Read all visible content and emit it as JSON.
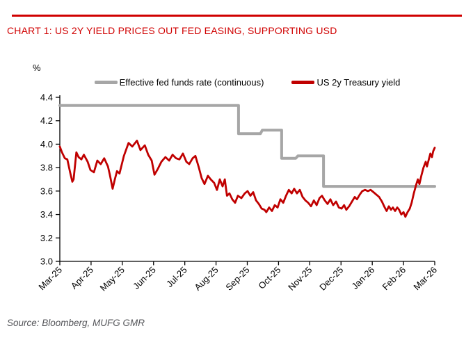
{
  "header": {
    "title": "CHART 1: US 2Y YIELD PRICES OUT FED EASING, SUPPORTING USD",
    "accent_color": "#D00000"
  },
  "footer": {
    "source": "Source: Bloomberg, MUFG GMR"
  },
  "chart_data": {
    "type": "line",
    "title": "CHART 1: US 2Y YIELD PRICES OUT FED EASING, SUPPORTING USD",
    "unit_label": "%",
    "ylabel": "%",
    "xlabel": "",
    "ylim": [
      3.0,
      4.4
    ],
    "yticks": [
      4.4,
      4.2,
      4.0,
      3.8,
      3.6,
      3.4,
      3.2,
      3.0
    ],
    "x_categories": [
      "Mar-25",
      "Apr-25",
      "May-25",
      "Jun-25",
      "Jul-25",
      "Aug-25",
      "Sep-25",
      "Oct-25",
      "Nov-25",
      "Dec-25",
      "Jan-26",
      "Feb-26",
      "Mar-26"
    ],
    "grid": false,
    "legend_position": "top-center",
    "x_unit": "month index, 0 = Mar-25 tick, 12 = Mar-26 tick",
    "series": [
      {
        "name": "Effective fed funds rate (continuous)",
        "color": "#A6A6A6",
        "width": 4,
        "style": "step",
        "points": [
          [
            0,
            4.33
          ],
          [
            5.72,
            4.33
          ],
          [
            5.72,
            4.09
          ],
          [
            6.42,
            4.09
          ],
          [
            6.48,
            4.12
          ],
          [
            7.1,
            4.12
          ],
          [
            7.1,
            3.88
          ],
          [
            7.55,
            3.88
          ],
          [
            7.62,
            3.9
          ],
          [
            8.44,
            3.9
          ],
          [
            8.44,
            3.64
          ],
          [
            12,
            3.64
          ]
        ]
      },
      {
        "name": "US 2y Treasury yield",
        "color": "#C00000",
        "width": 2.8,
        "style": "line",
        "points": [
          [
            0,
            3.98
          ],
          [
            0.07,
            3.93
          ],
          [
            0.16,
            3.88
          ],
          [
            0.24,
            3.87
          ],
          [
            0.33,
            3.76
          ],
          [
            0.4,
            3.68
          ],
          [
            0.44,
            3.7
          ],
          [
            0.53,
            3.93
          ],
          [
            0.6,
            3.89
          ],
          [
            0.69,
            3.87
          ],
          [
            0.77,
            3.91
          ],
          [
            0.89,
            3.85
          ],
          [
            0.98,
            3.78
          ],
          [
            1.09,
            3.76
          ],
          [
            1.2,
            3.86
          ],
          [
            1.31,
            3.83
          ],
          [
            1.42,
            3.88
          ],
          [
            1.54,
            3.81
          ],
          [
            1.6,
            3.74
          ],
          [
            1.69,
            3.62
          ],
          [
            1.76,
            3.7
          ],
          [
            1.83,
            3.77
          ],
          [
            1.91,
            3.75
          ],
          [
            2.05,
            3.9
          ],
          [
            2.2,
            4.01
          ],
          [
            2.32,
            3.98
          ],
          [
            2.47,
            4.03
          ],
          [
            2.58,
            3.95
          ],
          [
            2.72,
            3.99
          ],
          [
            2.83,
            3.91
          ],
          [
            2.94,
            3.86
          ],
          [
            3.03,
            3.74
          ],
          [
            3.14,
            3.79
          ],
          [
            3.25,
            3.85
          ],
          [
            3.38,
            3.89
          ],
          [
            3.5,
            3.86
          ],
          [
            3.61,
            3.91
          ],
          [
            3.72,
            3.88
          ],
          [
            3.83,
            3.87
          ],
          [
            3.94,
            3.92
          ],
          [
            4.05,
            3.85
          ],
          [
            4.14,
            3.83
          ],
          [
            4.25,
            3.88
          ],
          [
            4.34,
            3.9
          ],
          [
            4.45,
            3.8
          ],
          [
            4.54,
            3.71
          ],
          [
            4.63,
            3.66
          ],
          [
            4.74,
            3.73
          ],
          [
            4.83,
            3.7
          ],
          [
            4.94,
            3.67
          ],
          [
            5.03,
            3.61
          ],
          [
            5.12,
            3.7
          ],
          [
            5.21,
            3.64
          ],
          [
            5.28,
            3.7
          ],
          [
            5.35,
            3.56
          ],
          [
            5.43,
            3.58
          ],
          [
            5.52,
            3.53
          ],
          [
            5.61,
            3.5
          ],
          [
            5.7,
            3.56
          ],
          [
            5.81,
            3.54
          ],
          [
            5.92,
            3.58
          ],
          [
            6.01,
            3.6
          ],
          [
            6.1,
            3.56
          ],
          [
            6.19,
            3.59
          ],
          [
            6.28,
            3.52
          ],
          [
            6.37,
            3.49
          ],
          [
            6.46,
            3.45
          ],
          [
            6.55,
            3.44
          ],
          [
            6.61,
            3.42
          ],
          [
            6.7,
            3.46
          ],
          [
            6.79,
            3.43
          ],
          [
            6.88,
            3.48
          ],
          [
            6.97,
            3.46
          ],
          [
            7.06,
            3.53
          ],
          [
            7.15,
            3.5
          ],
          [
            7.24,
            3.56
          ],
          [
            7.33,
            3.61
          ],
          [
            7.42,
            3.58
          ],
          [
            7.5,
            3.62
          ],
          [
            7.59,
            3.58
          ],
          [
            7.68,
            3.61
          ],
          [
            7.77,
            3.55
          ],
          [
            7.86,
            3.52
          ],
          [
            7.95,
            3.5
          ],
          [
            8.04,
            3.47
          ],
          [
            8.13,
            3.52
          ],
          [
            8.22,
            3.48
          ],
          [
            8.31,
            3.54
          ],
          [
            8.39,
            3.56
          ],
          [
            8.48,
            3.52
          ],
          [
            8.57,
            3.49
          ],
          [
            8.66,
            3.53
          ],
          [
            8.75,
            3.48
          ],
          [
            8.84,
            3.51
          ],
          [
            8.93,
            3.46
          ],
          [
            9.02,
            3.45
          ],
          [
            9.1,
            3.48
          ],
          [
            9.17,
            3.44
          ],
          [
            9.26,
            3.47
          ],
          [
            9.35,
            3.51
          ],
          [
            9.44,
            3.55
          ],
          [
            9.51,
            3.53
          ],
          [
            9.6,
            3.57
          ],
          [
            9.68,
            3.6
          ],
          [
            9.77,
            3.61
          ],
          [
            9.86,
            3.6
          ],
          [
            9.95,
            3.61
          ],
          [
            10.04,
            3.59
          ],
          [
            10.13,
            3.57
          ],
          [
            10.22,
            3.55
          ],
          [
            10.31,
            3.51
          ],
          [
            10.4,
            3.46
          ],
          [
            10.46,
            3.43
          ],
          [
            10.53,
            3.47
          ],
          [
            10.6,
            3.44
          ],
          [
            10.66,
            3.46
          ],
          [
            10.73,
            3.43
          ],
          [
            10.8,
            3.46
          ],
          [
            10.86,
            3.44
          ],
          [
            10.93,
            3.4
          ],
          [
            11.0,
            3.42
          ],
          [
            11.06,
            3.38
          ],
          [
            11.13,
            3.42
          ],
          [
            11.2,
            3.45
          ],
          [
            11.26,
            3.5
          ],
          [
            11.33,
            3.58
          ],
          [
            11.4,
            3.65
          ],
          [
            11.46,
            3.7
          ],
          [
            11.51,
            3.66
          ],
          [
            11.57,
            3.73
          ],
          [
            11.64,
            3.8
          ],
          [
            11.71,
            3.85
          ],
          [
            11.75,
            3.81
          ],
          [
            11.82,
            3.88
          ],
          [
            11.86,
            3.92
          ],
          [
            11.91,
            3.89
          ],
          [
            11.95,
            3.94
          ],
          [
            12.0,
            3.97
          ]
        ]
      }
    ]
  }
}
